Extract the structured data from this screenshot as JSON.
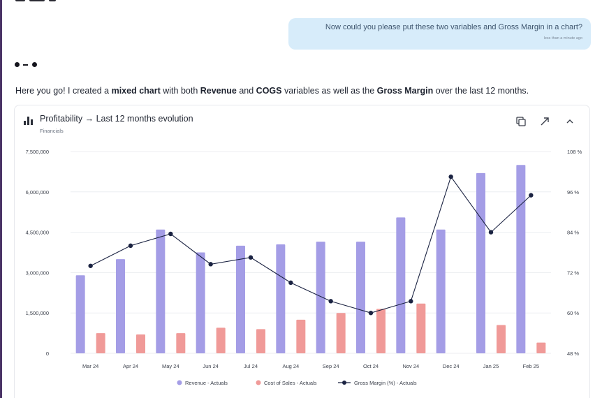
{
  "conversation": {
    "user_message": "Now could you please put these two variables and Gross Margin in a chart?",
    "user_message_time": "less than a minute ago",
    "assistant_message": {
      "parts": [
        {
          "text": "Here you go! I created a ",
          "bold": false
        },
        {
          "text": "mixed chart",
          "bold": true
        },
        {
          "text": " with both ",
          "bold": false
        },
        {
          "text": "Revenue",
          "bold": true
        },
        {
          "text": " and ",
          "bold": false
        },
        {
          "text": "COGS",
          "bold": true
        },
        {
          "text": " variables as well as the ",
          "bold": false
        },
        {
          "text": "Gross Margin",
          "bold": true
        },
        {
          "text": " over the last 12 months.",
          "bold": false
        }
      ]
    }
  },
  "card": {
    "title": "Profitability → Last 12 months evolution",
    "subtitle": "Financials",
    "actions": [
      "copy-icon",
      "expand-icon",
      "chevron-up-icon"
    ]
  },
  "chart_data": {
    "type": "bar",
    "categories": [
      "Mar 24",
      "Apr 24",
      "May 24",
      "Jun 24",
      "Jul 24",
      "Aug 24",
      "Sep 24",
      "Oct 24",
      "Nov 24",
      "Dec 24",
      "Jan 25",
      "Feb 25"
    ],
    "y_left": {
      "min": 0,
      "max": 7500000,
      "ticks": [
        0,
        1500000,
        3000000,
        4500000,
        6000000,
        7500000
      ],
      "tick_labels": [
        "0",
        "1,500,000",
        "3,000,000",
        "4,500,000",
        "6,000,000",
        "7,500,000"
      ]
    },
    "y_right": {
      "min": 48,
      "max": 108,
      "ticks": [
        48,
        60,
        72,
        84,
        96,
        108
      ],
      "tick_labels": [
        "48 %",
        "60 %",
        "72 %",
        "84 %",
        "96 %",
        "108 %"
      ]
    },
    "grid": true,
    "legend_position": "bottom",
    "series": [
      {
        "name": "Revenue - Actuals",
        "type": "bar",
        "axis": "left",
        "color": "#a49de6",
        "values": [
          2900000,
          3500000,
          4600000,
          3750000,
          4000000,
          4050000,
          4150000,
          4150000,
          5050000,
          4600000,
          6700000,
          7000000
        ]
      },
      {
        "name": "Cost of Sales - Actuals",
        "type": "bar",
        "axis": "left",
        "color": "#f09a98",
        "values": [
          750000,
          700000,
          750000,
          950000,
          900000,
          1250000,
          1500000,
          1650000,
          1850000,
          0,
          1050000,
          400000
        ]
      },
      {
        "name": "Gross Margin (%) - Actuals",
        "type": "line",
        "axis": "right",
        "color": "#1b2342",
        "values": [
          74,
          80,
          83.5,
          74.5,
          76.5,
          69,
          63.5,
          60,
          63.5,
          100.5,
          84,
          95
        ]
      }
    ]
  }
}
